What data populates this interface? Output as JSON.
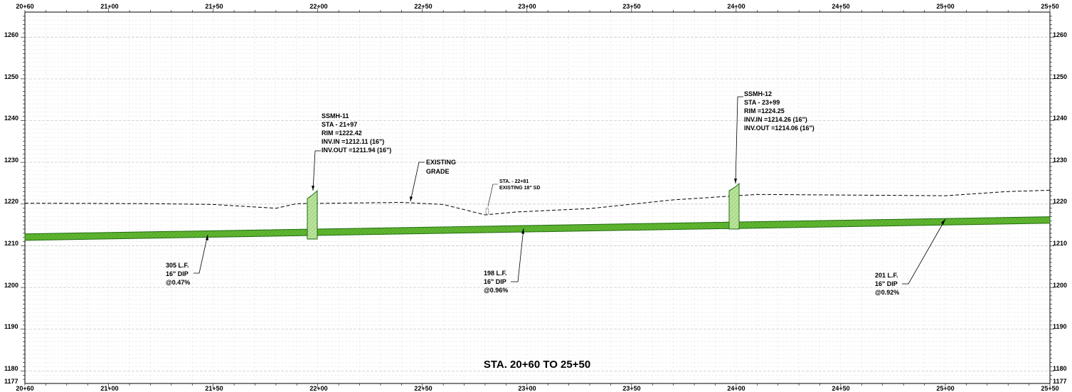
{
  "sheet": {
    "title": "STA. 20+60 TO 25+50",
    "stations_top": [
      "20+60",
      "21+00",
      "21+50",
      "22+00",
      "22+50",
      "23+00",
      "23+50",
      "24+00",
      "24+50",
      "25+00",
      "25+50"
    ],
    "stations_bottom": [
      "20+60",
      "21+00",
      "21+50",
      "22+00",
      "22+50",
      "23+00",
      "23+50",
      "24+00",
      "24+50",
      "25+00",
      "25+50"
    ],
    "elevations": [
      "1260",
      "1250",
      "1240",
      "1230",
      "1220",
      "1210",
      "1200",
      "1190",
      "1180",
      "1177"
    ]
  },
  "colors": {
    "pipe_fill": "#5fb52f",
    "pipe_stroke": "#1f6b10",
    "manhole_fill": "#b9e39a",
    "grid_major": "#c8c8c8",
    "grid_minor": "#e2e2e2"
  },
  "manholes": [
    {
      "id": "SSMH-11",
      "station": 2197,
      "rim_elev": 1222.42,
      "lines": [
        "SSMH-11",
        "STA - 21+97",
        "RIM =1222.42",
        "INV.IN =1212.11 (16\")",
        "INV.OUT =1211.94 (16\")"
      ]
    },
    {
      "id": "SSMH-12",
      "station": 2399,
      "rim_elev": 1224.25,
      "lines": [
        "SSMH-12",
        "STA - 23+99",
        "RIM =1224.25",
        "INV.IN =1214.26 (16\")",
        "INV.OUT =1214.06 (16\")"
      ]
    }
  ],
  "pipe_segments": [
    {
      "lines": [
        "305 L.F.",
        "16\" DIP",
        "@0.47%"
      ]
    },
    {
      "lines": [
        "198 L.F.",
        "16\" DIP",
        "@0.96%"
      ]
    },
    {
      "lines": [
        "201 L.F.",
        "16\" DIP",
        "@0.92%"
      ]
    }
  ],
  "pipe_profile": {
    "stations": [
      2060,
      2550
    ],
    "invert_elev": [
      1211.3,
      1215.4
    ],
    "diameter_elev": 1.55
  },
  "existing_grade": {
    "label_lines": [
      "EXISTING",
      "GRADE"
    ],
    "points": [
      [
        2060,
        1220.2
      ],
      [
        2120,
        1220.1
      ],
      [
        2150,
        1219.9
      ],
      [
        2180,
        1219.0
      ],
      [
        2190,
        1220.1
      ],
      [
        2240,
        1220.4
      ],
      [
        2260,
        1219.9
      ],
      [
        2280,
        1217.4
      ],
      [
        2295,
        1218.1
      ],
      [
        2330,
        1218.9
      ],
      [
        2370,
        1221.0
      ],
      [
        2410,
        1222.3
      ],
      [
        2470,
        1222.1
      ],
      [
        2500,
        1222.0
      ],
      [
        2530,
        1223.0
      ],
      [
        2550,
        1223.3
      ]
    ]
  },
  "crossing": {
    "station": 2281,
    "lines": [
      "STA. - 22+81",
      "EXISTING 18\" SD"
    ]
  }
}
